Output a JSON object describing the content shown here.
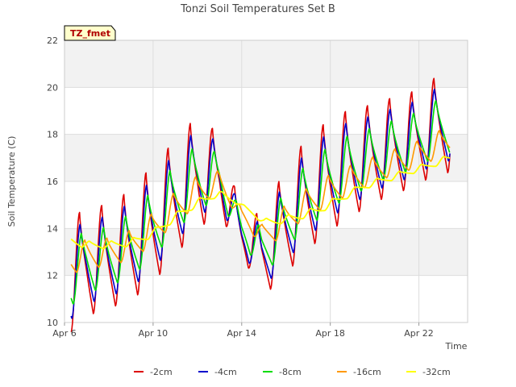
{
  "chart_data": {
    "type": "line",
    "title": "Tonzi Soil Temperatures Set B",
    "xlabel": "Time",
    "ylabel": "Soil Temperature (C)",
    "badge": "TZ_fmet",
    "ylim": [
      10,
      22
    ],
    "yticks": [
      10,
      12,
      14,
      16,
      18,
      20,
      22
    ],
    "xlim": [
      6,
      24.2
    ],
    "xticks": [
      {
        "x": 6,
        "label": "Apr 6"
      },
      {
        "x": 10,
        "label": "Apr 10"
      },
      {
        "x": 14,
        "label": "Apr 14"
      },
      {
        "x": 18,
        "label": "Apr 18"
      },
      {
        "x": 22,
        "label": "Apr 22"
      }
    ],
    "grid": true,
    "legend_position": "bottom",
    "series": [
      {
        "name": "-2cm",
        "color": "#dd0000",
        "width": 1.6,
        "shift": 0.0,
        "amp": 1.0,
        "mean": [
          [
            6.3,
            12.0
          ],
          [
            7,
            12.6
          ],
          [
            8,
            12.8
          ],
          [
            9,
            13.3
          ],
          [
            10,
            14.2
          ],
          [
            11,
            15.3
          ],
          [
            12,
            16.4
          ],
          [
            13,
            16.3
          ],
          [
            14,
            13.8
          ],
          [
            14.9,
            12.9
          ],
          [
            15.5,
            13.6
          ],
          [
            16.5,
            15.0
          ],
          [
            17.5,
            15.9
          ],
          [
            18.5,
            16.6
          ],
          [
            19.5,
            17.0
          ],
          [
            20.5,
            17.4
          ],
          [
            21.5,
            17.7
          ],
          [
            22.5,
            18.2
          ],
          [
            23.4,
            18.6
          ]
        ],
        "amp_knots": [
          [
            6.3,
            2.4
          ],
          [
            8,
            2.2
          ],
          [
            10,
            2.5
          ],
          [
            12,
            2.4
          ],
          [
            13,
            1.7
          ],
          [
            14,
            0.9
          ],
          [
            15,
            1.8
          ],
          [
            16,
            2.3
          ],
          [
            18,
            2.4
          ],
          [
            20,
            2.1
          ],
          [
            22,
            2.0
          ],
          [
            23.4,
            2.2
          ]
        ]
      },
      {
        "name": "-4cm",
        "color": "#0000cc",
        "width": 1.6,
        "shift": 0.03,
        "amp": 0.78,
        "mean": [
          [
            6.3,
            12.0
          ],
          [
            7,
            12.6
          ],
          [
            8,
            12.8
          ],
          [
            9,
            13.3
          ],
          [
            10,
            14.2
          ],
          [
            11,
            15.3
          ],
          [
            12,
            16.4
          ],
          [
            13,
            16.3
          ],
          [
            14,
            13.8
          ],
          [
            14.9,
            12.9
          ],
          [
            15.5,
            13.6
          ],
          [
            16.5,
            15.0
          ],
          [
            17.5,
            15.9
          ],
          [
            18.5,
            16.6
          ],
          [
            19.5,
            17.0
          ],
          [
            20.5,
            17.4
          ],
          [
            21.5,
            17.7
          ],
          [
            22.5,
            18.2
          ],
          [
            23.4,
            18.6
          ]
        ],
        "amp_knots": [
          [
            6.3,
            2.4
          ],
          [
            8,
            2.2
          ],
          [
            10,
            2.5
          ],
          [
            12,
            2.4
          ],
          [
            13,
            1.7
          ],
          [
            14,
            0.9
          ],
          [
            15,
            1.8
          ],
          [
            16,
            2.3
          ],
          [
            18,
            2.4
          ],
          [
            20,
            2.1
          ],
          [
            22,
            2.0
          ],
          [
            23.4,
            2.2
          ]
        ]
      },
      {
        "name": "-8cm",
        "color": "#00dd00",
        "width": 1.6,
        "shift": 0.09,
        "amp": 0.58,
        "mean": [
          [
            6.3,
            12.1
          ],
          [
            7,
            12.6
          ],
          [
            8,
            12.8
          ],
          [
            9,
            13.3
          ],
          [
            10,
            14.2
          ],
          [
            11,
            15.3
          ],
          [
            12,
            16.2
          ],
          [
            13,
            16.2
          ],
          [
            14,
            14.0
          ],
          [
            14.9,
            13.1
          ],
          [
            15.5,
            13.7
          ],
          [
            16.5,
            15.0
          ],
          [
            17.5,
            15.8
          ],
          [
            18.5,
            16.5
          ],
          [
            19.5,
            16.9
          ],
          [
            20.5,
            17.3
          ],
          [
            21.5,
            17.6
          ],
          [
            22.5,
            18.1
          ],
          [
            23.4,
            18.5
          ]
        ],
        "amp_knots": [
          [
            6.3,
            2.4
          ],
          [
            8,
            2.2
          ],
          [
            10,
            2.5
          ],
          [
            12,
            2.4
          ],
          [
            13,
            1.7
          ],
          [
            14,
            0.9
          ],
          [
            15,
            1.8
          ],
          [
            16,
            2.3
          ],
          [
            18,
            2.4
          ],
          [
            20,
            2.1
          ],
          [
            22,
            2.0
          ],
          [
            23.4,
            2.2
          ]
        ]
      },
      {
        "name": "-16cm",
        "color": "#ff9900",
        "width": 1.6,
        "shift": 0.24,
        "amp": 0.27,
        "mean": [
          [
            6.3,
            12.7
          ],
          [
            7,
            12.9
          ],
          [
            8,
            13.0
          ],
          [
            9,
            13.3
          ],
          [
            10,
            14.0
          ],
          [
            11,
            14.9
          ],
          [
            12,
            15.6
          ],
          [
            13,
            16.0
          ],
          [
            14,
            14.6
          ],
          [
            14.9,
            13.7
          ],
          [
            15.5,
            14.0
          ],
          [
            16.5,
            14.8
          ],
          [
            17.5,
            15.4
          ],
          [
            18.5,
            15.9
          ],
          [
            19.5,
            16.3
          ],
          [
            20.5,
            16.7
          ],
          [
            21.5,
            17.0
          ],
          [
            22.5,
            17.4
          ],
          [
            23.4,
            17.8
          ]
        ],
        "amp_knots": [
          [
            6.3,
            2.4
          ],
          [
            8,
            2.2
          ],
          [
            10,
            2.5
          ],
          [
            12,
            2.4
          ],
          [
            13,
            1.7
          ],
          [
            14,
            0.9
          ],
          [
            15,
            1.8
          ],
          [
            16,
            2.3
          ],
          [
            18,
            2.4
          ],
          [
            20,
            2.1
          ],
          [
            22,
            2.0
          ],
          [
            23.4,
            2.2
          ]
        ]
      },
      {
        "name": "-32cm",
        "color": "#ffff00",
        "width": 1.8,
        "shift": 0.45,
        "amp": 0.07,
        "mean": [
          [
            6.3,
            13.5
          ],
          [
            7,
            13.3
          ],
          [
            8,
            13.3
          ],
          [
            9,
            13.4
          ],
          [
            10,
            13.8
          ],
          [
            11,
            14.5
          ],
          [
            12,
            15.1
          ],
          [
            13,
            15.5
          ],
          [
            14,
            15.0
          ],
          [
            15,
            14.3
          ],
          [
            15.5,
            14.3
          ],
          [
            16.5,
            14.5
          ],
          [
            17.5,
            14.8
          ],
          [
            18.5,
            15.3
          ],
          [
            19.5,
            15.8
          ],
          [
            20.5,
            16.1
          ],
          [
            21.5,
            16.4
          ],
          [
            22.5,
            16.7
          ],
          [
            23.4,
            17.0
          ]
        ],
        "amp_knots": [
          [
            6.3,
            2.4
          ],
          [
            8,
            2.2
          ],
          [
            10,
            2.5
          ],
          [
            12,
            2.4
          ],
          [
            13,
            1.7
          ],
          [
            14,
            0.9
          ],
          [
            15,
            1.8
          ],
          [
            16,
            2.3
          ],
          [
            18,
            2.4
          ],
          [
            20,
            2.1
          ],
          [
            22,
            2.0
          ],
          [
            23.4,
            2.2
          ]
        ]
      }
    ]
  }
}
